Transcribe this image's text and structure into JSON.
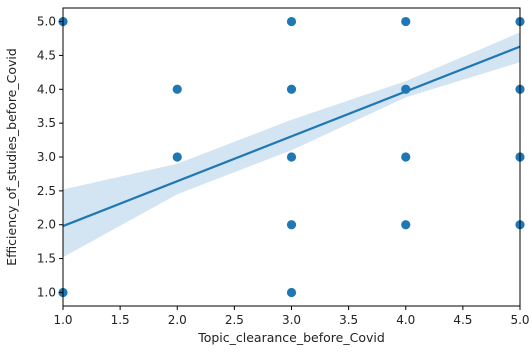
{
  "chart_data": {
    "type": "scatter",
    "title": "",
    "xlabel": "Topic_clearance_before_Covid",
    "ylabel": "Efficiency_of_studies_before_Covid",
    "xlim": [
      1.0,
      5.0
    ],
    "ylim": [
      0.8,
      5.2
    ],
    "xticks": [
      "1.0",
      "1.5",
      "2.0",
      "2.5",
      "3.0",
      "3.5",
      "4.0",
      "4.5",
      "5.0"
    ],
    "yticks": [
      "1.0",
      "1.5",
      "2.0",
      "2.5",
      "3.0",
      "3.5",
      "4.0",
      "4.5",
      "5.0"
    ],
    "grid": false,
    "point_color": "#1f77b4",
    "points": [
      {
        "x": 1,
        "y": 5
      },
      {
        "x": 1,
        "y": 1
      },
      {
        "x": 2,
        "y": 4
      },
      {
        "x": 2,
        "y": 3
      },
      {
        "x": 3,
        "y": 5
      },
      {
        "x": 3,
        "y": 4
      },
      {
        "x": 3,
        "y": 3
      },
      {
        "x": 3,
        "y": 2
      },
      {
        "x": 3,
        "y": 1
      },
      {
        "x": 4,
        "y": 5
      },
      {
        "x": 4,
        "y": 4
      },
      {
        "x": 4,
        "y": 3
      },
      {
        "x": 4,
        "y": 2
      },
      {
        "x": 5,
        "y": 5
      },
      {
        "x": 5,
        "y": 4
      },
      {
        "x": 5,
        "y": 3
      },
      {
        "x": 5,
        "y": 2
      }
    ],
    "regression": {
      "line": [
        {
          "x": 1.0,
          "y": 1.98
        },
        {
          "x": 5.0,
          "y": 4.63
        }
      ],
      "ci_upper": [
        {
          "x": 1.0,
          "y": 2.52
        },
        {
          "x": 2.0,
          "y": 2.9
        },
        {
          "x": 3.0,
          "y": 3.55
        },
        {
          "x": 4.0,
          "y": 4.12
        },
        {
          "x": 5.0,
          "y": 4.84
        }
      ],
      "ci_lower": [
        {
          "x": 1.0,
          "y": 1.52
        },
        {
          "x": 2.0,
          "y": 2.45
        },
        {
          "x": 3.0,
          "y": 3.1
        },
        {
          "x": 4.0,
          "y": 3.88
        },
        {
          "x": 5.0,
          "y": 4.4
        }
      ],
      "line_color": "#1f77b4",
      "band_color": "#aecde8"
    }
  }
}
